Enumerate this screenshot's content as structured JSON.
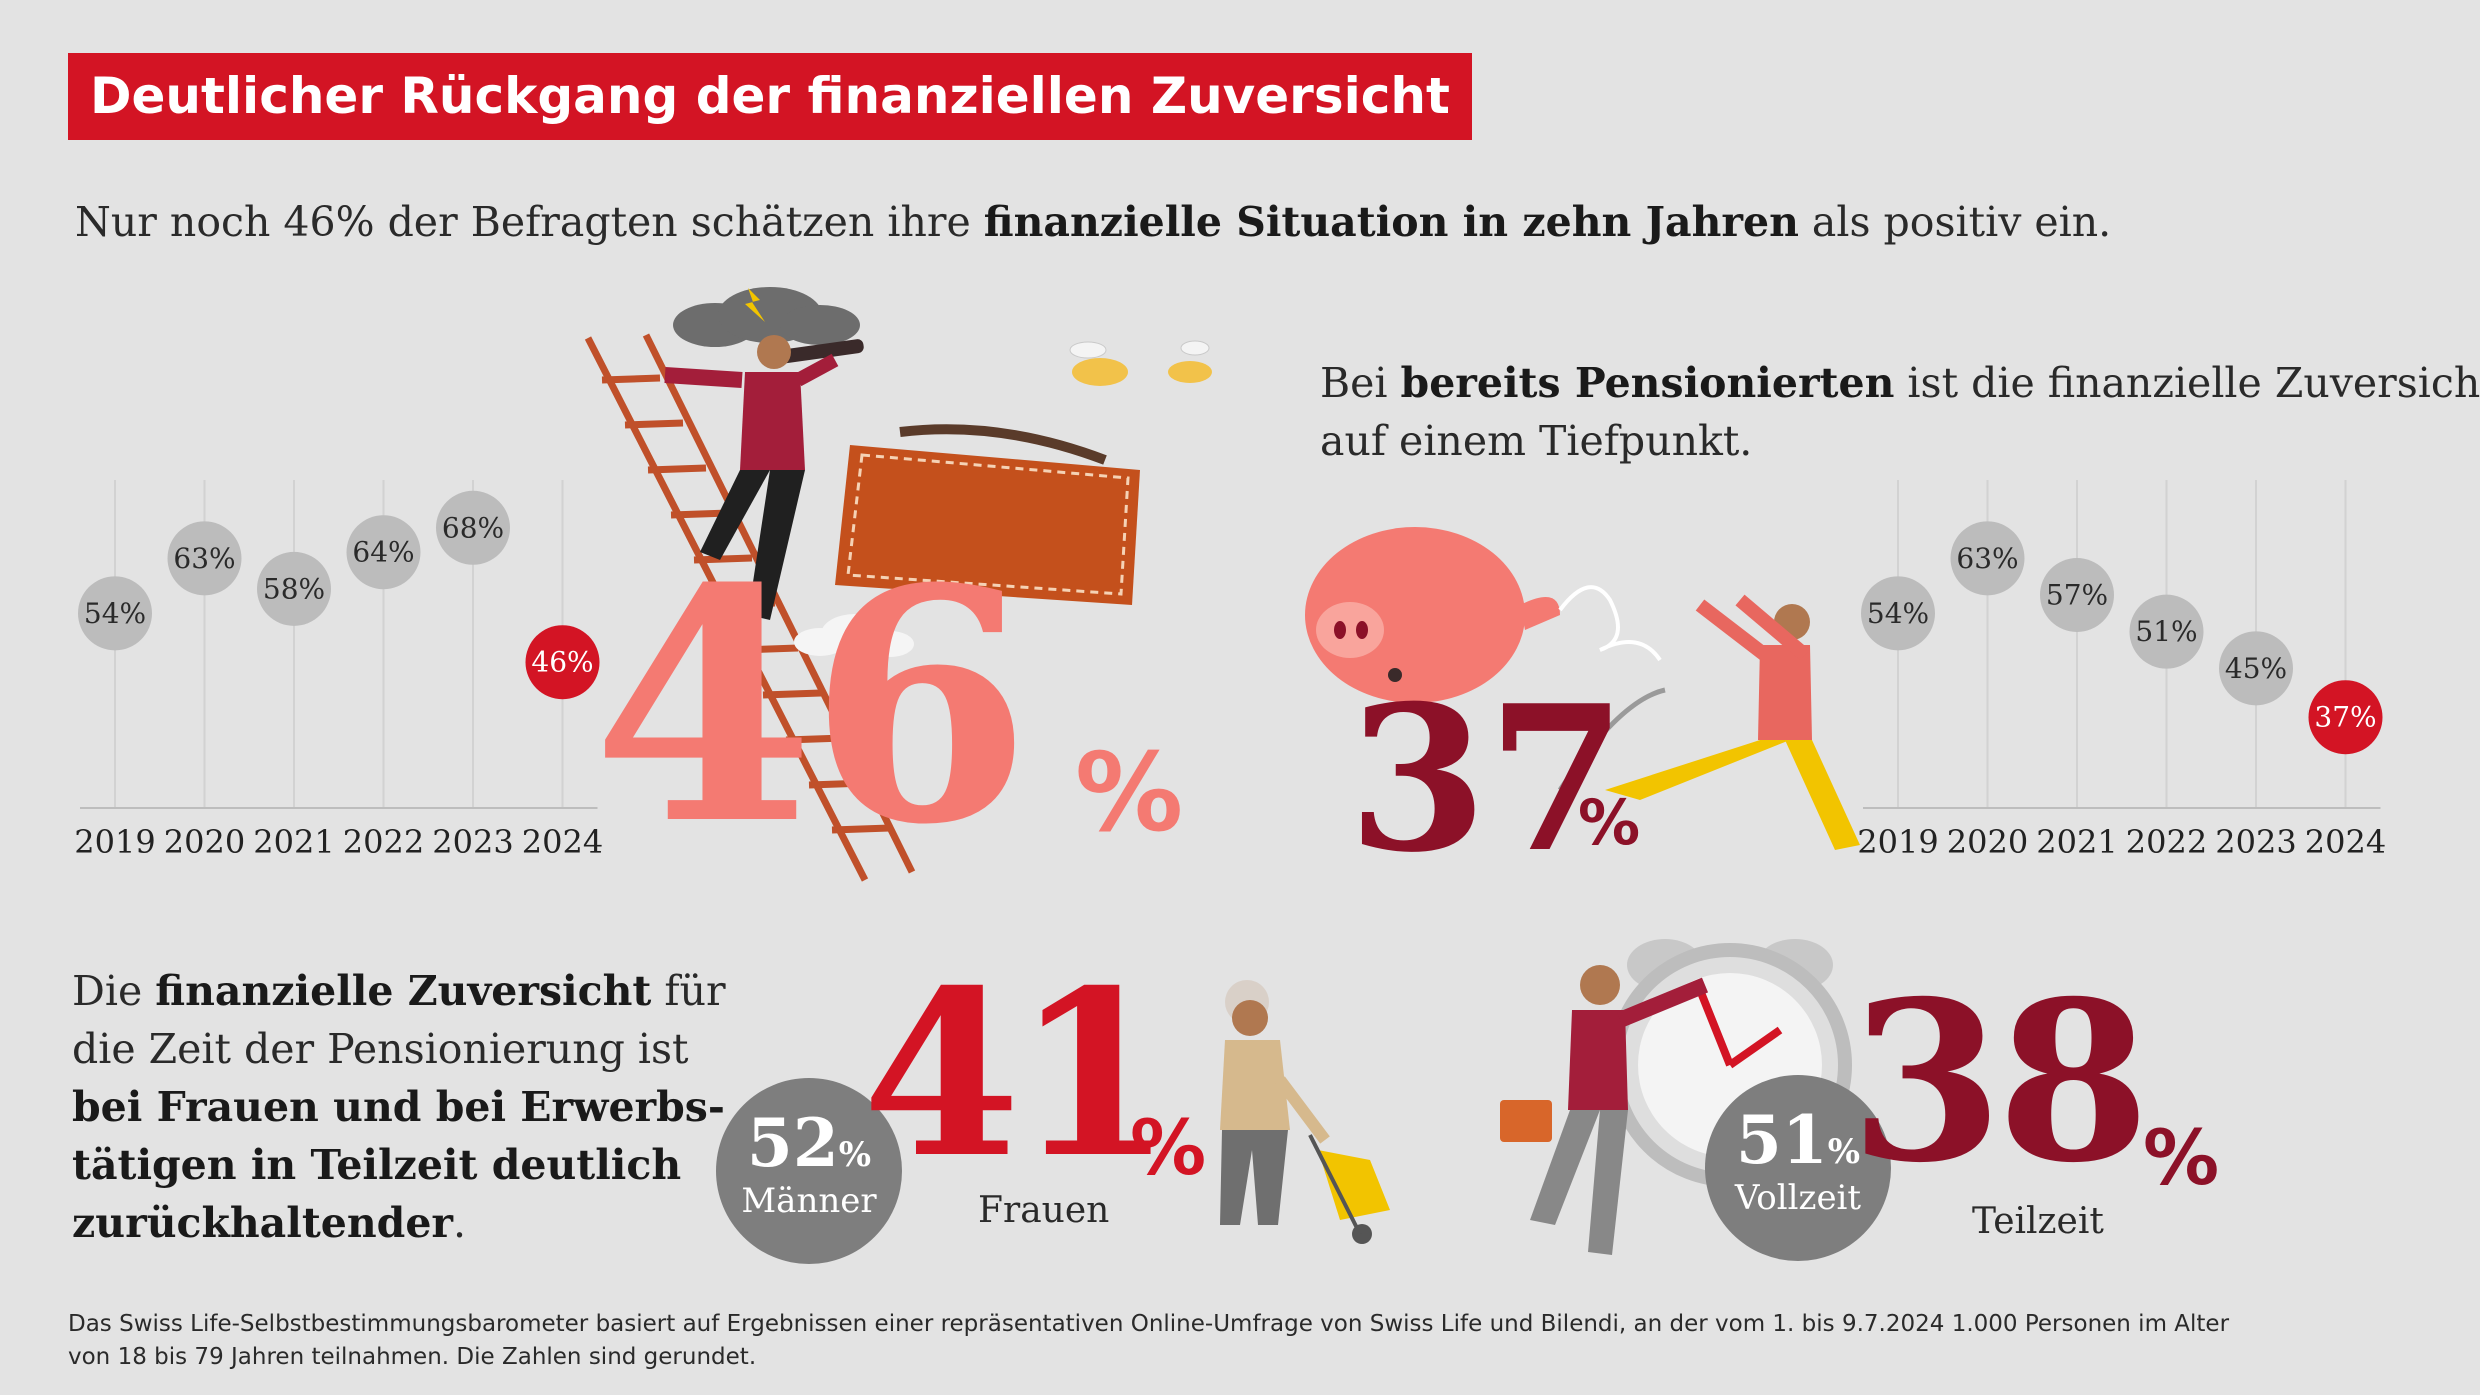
{
  "title": "Deutlicher Rückgang der finanziellen Zuversicht",
  "lead": {
    "text_before": "Nur noch 46% der Befragten schätzen ihre ",
    "text_bold": "finanzielle Situation in zehn Jahren",
    "text_after": " als positiv ein."
  },
  "pensioners": {
    "line1_before": "Bei ",
    "line1_bold": "bereits Pensionierten",
    "line1_after": " ist die finanzielle Zuversicht",
    "line2": "auf einem Tiefpunkt."
  },
  "big_stats": {
    "overall": "46",
    "overall_pct": "%",
    "pensioners": "37",
    "pensioners_pct": "%"
  },
  "retirement": {
    "p1_before": "Die ",
    "p1_bold": "finanzielle Zuversicht",
    "p1_after": " für",
    "p2": "die Zeit der Pensionierung ist",
    "p3_bold": "bei Frauen und bei Erwerbs-",
    "p4_bold": "tätigen in Teilzeit deutlich",
    "p5_bold": "zurückhaltender",
    "p5_after": "."
  },
  "gender": {
    "men_value": "52",
    "men_pct": "%",
    "men_label": "Männer",
    "women_value": "41",
    "women_pct": "%",
    "women_label": "Frauen"
  },
  "employment": {
    "full_value": "51",
    "full_pct": "%",
    "full_label": "Vollzeit",
    "part_value": "38",
    "part_pct": "%",
    "part_label": "Teilzeit"
  },
  "footnote": {
    "line1": "Das Swiss Life-Selbstbestimmungsbarometer basiert auf Ergebnissen einer repräsentativen Online-Umfrage von Swiss Life und Bilendi, an der vom 1. bis 9.7.2024 1.000 Personen im Alter",
    "line2": "von 18 bis 79 Jahren teilnahmen. Die Zahlen sind gerundet."
  },
  "colors": {
    "red": "#d31424",
    "dark_red": "#8c1128",
    "salmon": "#f47a72",
    "grey_bubble": "#bcbcbc",
    "grey_circle": "#7e7e7e",
    "background": "#e3e3e3"
  },
  "chart_data": [
    {
      "type": "scatter",
      "title": "",
      "categories": [
        "2019",
        "2020",
        "2021",
        "2022",
        "2023",
        "2024"
      ],
      "series": [
        {
          "values": [
            54,
            63,
            58,
            64,
            68,
            46
          ]
        }
      ],
      "labels": [
        "54%",
        "63%",
        "58%",
        "64%",
        "68%",
        "46%"
      ],
      "highlight_last": true,
      "grid": "vertical",
      "ylim": [
        30,
        75
      ]
    },
    {
      "type": "scatter",
      "title": "",
      "categories": [
        "2019",
        "2020",
        "2021",
        "2022",
        "2023",
        "2024"
      ],
      "series": [
        {
          "values": [
            54,
            63,
            57,
            51,
            45,
            37
          ]
        }
      ],
      "labels": [
        "54%",
        "63%",
        "57%",
        "51%",
        "45%",
        "37%"
      ],
      "highlight_last": true,
      "grid": "vertical",
      "ylim": [
        30,
        75
      ]
    }
  ]
}
